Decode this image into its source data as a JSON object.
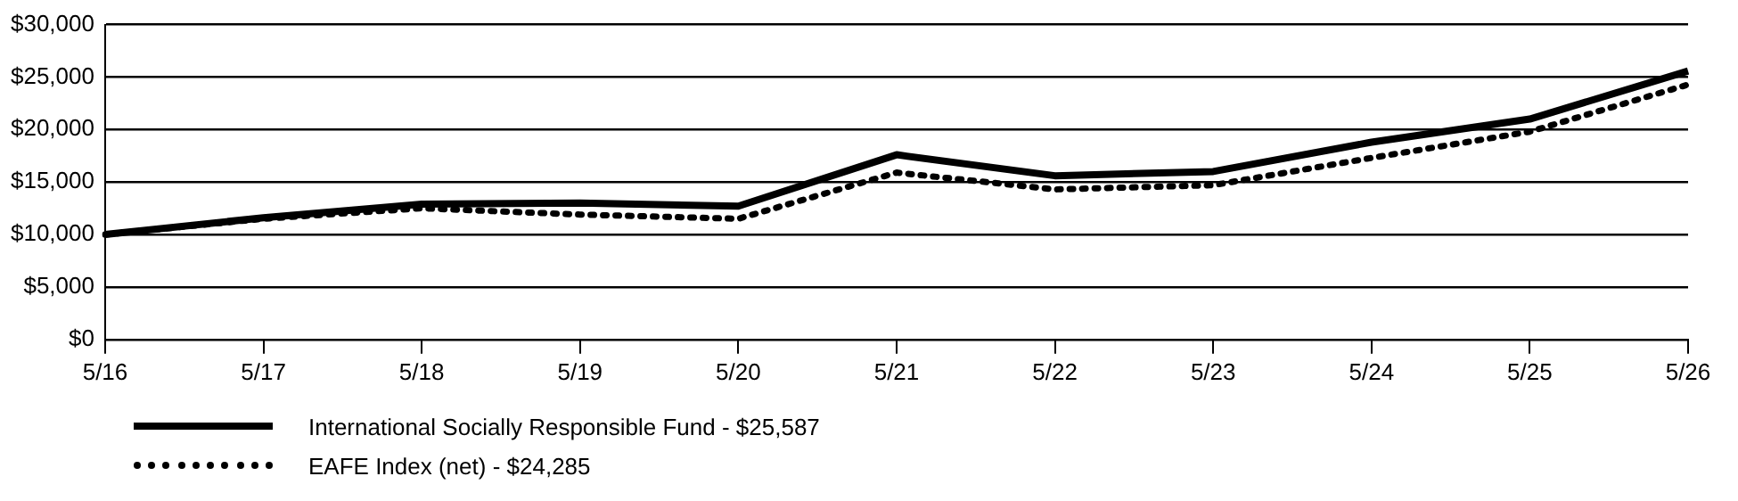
{
  "chart_data": {
    "type": "line",
    "categories": [
      "5/16",
      "5/17",
      "5/18",
      "5/19",
      "5/20",
      "5/21",
      "5/22",
      "5/23",
      "5/24",
      "5/25",
      "5/26"
    ],
    "series": [
      {
        "name": "International Socially Responsible Fund - $25,587",
        "color": "#000000",
        "line_style": "solid",
        "values": [
          10000,
          11600,
          12900,
          13000,
          12700,
          17600,
          15600,
          16000,
          18800,
          21000,
          25587
        ]
      },
      {
        "name": "EAFE Index (net) - $24,285",
        "color": "#000000",
        "line_style": "dotted",
        "values": [
          10000,
          11500,
          12500,
          11900,
          11500,
          15900,
          14300,
          14700,
          17300,
          19800,
          24285
        ]
      }
    ],
    "ylim": [
      0,
      30000
    ],
    "yticks": [
      {
        "value": 0,
        "label": "$0"
      },
      {
        "value": 5000,
        "label": "$5,000"
      },
      {
        "value": 10000,
        "label": "$10,000"
      },
      {
        "value": 15000,
        "label": "$15,000"
      },
      {
        "value": 20000,
        "label": "$20,000"
      },
      {
        "value": 25000,
        "label": "$25,000"
      },
      {
        "value": 30000,
        "label": "$30,000"
      }
    ],
    "grid": "y",
    "legend": "bottom",
    "marker": "none"
  }
}
